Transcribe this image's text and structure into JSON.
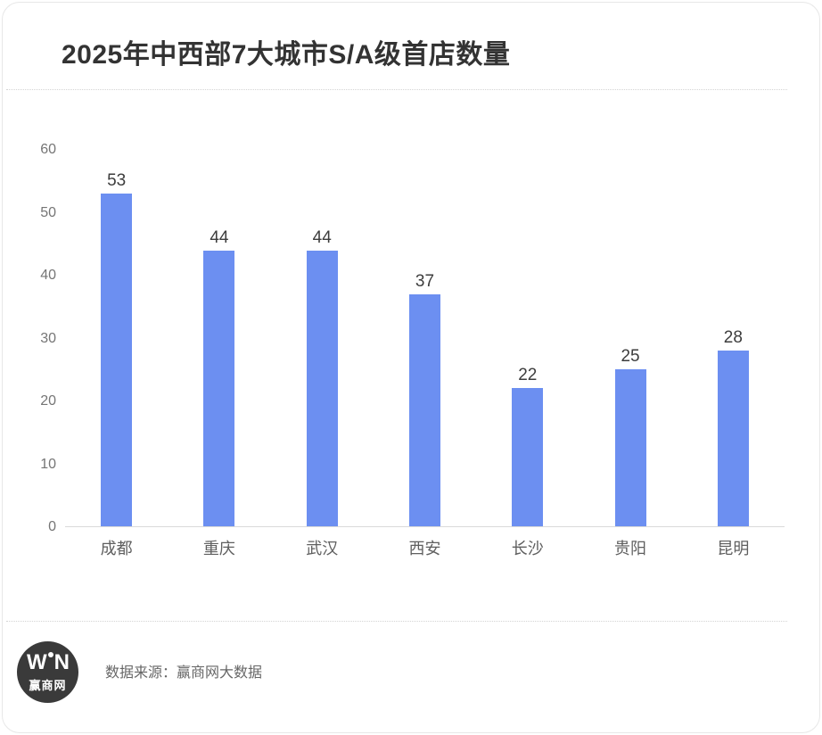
{
  "page": {
    "title": "2025年中西部7大城市S/A级首店数量"
  },
  "chart_data": {
    "type": "bar",
    "title": "2025年中西部7大城市S/A级首店数量",
    "categories": [
      "成都",
      "重庆",
      "武汉",
      "西安",
      "长沙",
      "贵阳",
      "昆明"
    ],
    "values": [
      53,
      44,
      44,
      37,
      22,
      25,
      28
    ],
    "xlabel": "",
    "ylabel": "",
    "ylim": [
      0,
      60
    ],
    "yticks": [
      0,
      10,
      20,
      30,
      40,
      50,
      60
    ],
    "grid": false,
    "legend_position": "none",
    "bar_color": "#6C8FF1",
    "value_labels_shown": true
  },
  "footer": {
    "source_label": "数据来源：赢商网大数据",
    "logo": {
      "left_letter": "W",
      "right_letter": "N",
      "bottom_text": "赢商网",
      "background_color": "#3a3a3a"
    }
  },
  "colors": {
    "bar": "#6C8FF1",
    "title_text": "#333333",
    "axis_line": "#d9d9d9",
    "tick_text": "#757575",
    "category_text": "#5f5f5f",
    "source_text": "#666666",
    "logo_background": "#3a3a3a",
    "card_border": "#e7e7e7"
  }
}
